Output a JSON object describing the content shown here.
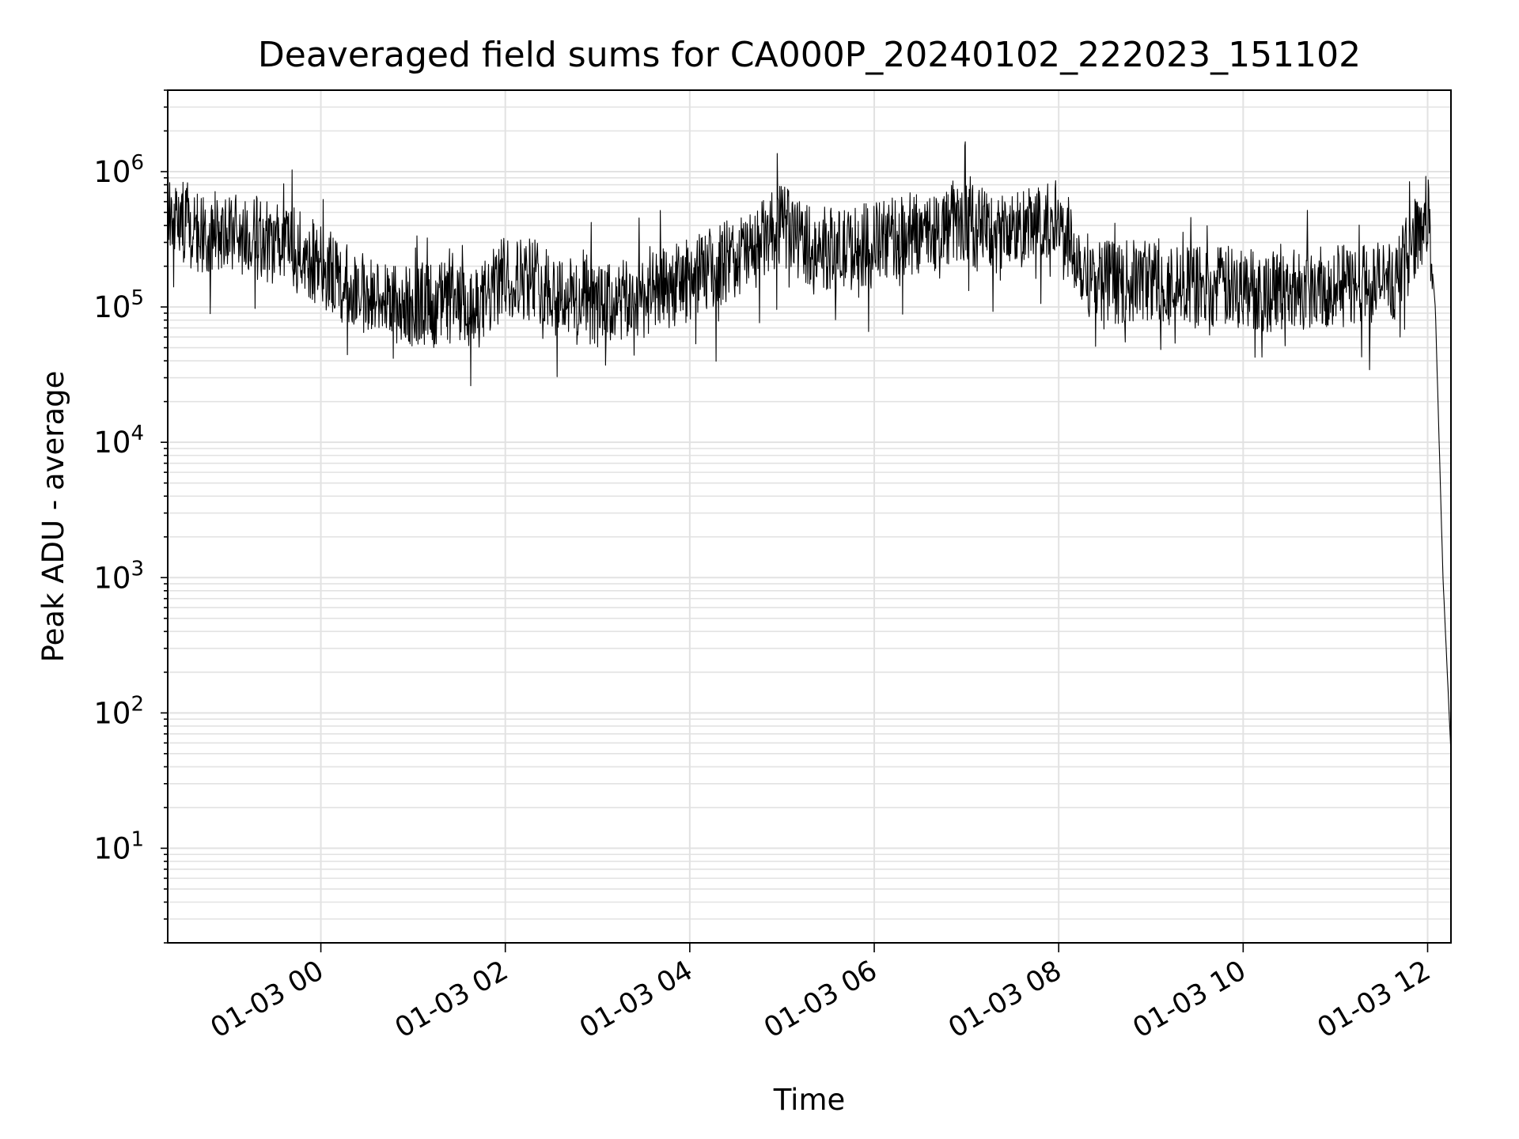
{
  "chart_data": {
    "type": "line",
    "title": "Deaveraged field sums for CA000P_20240102_222023_151102",
    "xlabel": "Time",
    "ylabel": "Peak ADU - average",
    "yscale": "log",
    "ylim": [
      2,
      4000000
    ],
    "xlim": [
      "2024-01-02T22:20:23",
      "2024-01-03T12:15:11"
    ],
    "grid": true,
    "line_color": "#000000",
    "x_ticks": [
      {
        "label": "01-03 00",
        "t": "2024-01-03T00:00:00"
      },
      {
        "label": "01-03 02",
        "t": "2024-01-03T02:00:00"
      },
      {
        "label": "01-03 04",
        "t": "2024-01-03T04:00:00"
      },
      {
        "label": "01-03 06",
        "t": "2024-01-03T06:00:00"
      },
      {
        "label": "01-03 08",
        "t": "2024-01-03T08:00:00"
      },
      {
        "label": "01-03 10",
        "t": "2024-01-03T10:00:00"
      },
      {
        "label": "01-03 12",
        "t": "2024-01-03T12:00:00"
      }
    ],
    "y_ticks": [
      {
        "base": "10",
        "exp": "1",
        "value": 10
      },
      {
        "base": "10",
        "exp": "2",
        "value": 100
      },
      {
        "base": "10",
        "exp": "3",
        "value": 1000
      },
      {
        "base": "10",
        "exp": "4",
        "value": 10000
      },
      {
        "base": "10",
        "exp": "5",
        "value": 100000
      },
      {
        "base": "10",
        "exp": "6",
        "value": 1000000
      }
    ],
    "series": [
      {
        "x": [
          "2024-01-02T22:20:23",
          "2024-01-02T22:40:00",
          "2024-01-02T23:00:00",
          "2024-01-02T23:20:00",
          "2024-01-02T23:40:00",
          "2024-01-03T00:00:00",
          "2024-01-03T00:20:00",
          "2024-01-03T00:40:00",
          "2024-01-03T01:00:00",
          "2024-01-03T01:20:00",
          "2024-01-03T01:40:00",
          "2024-01-03T02:00:00",
          "2024-01-03T02:20:00",
          "2024-01-03T02:40:00",
          "2024-01-03T03:00:00",
          "2024-01-03T03:20:00",
          "2024-01-03T03:40:00",
          "2024-01-03T04:00:00",
          "2024-01-03T04:20:00",
          "2024-01-03T04:40:00",
          "2024-01-03T05:00:00",
          "2024-01-03T05:20:00",
          "2024-01-03T05:40:00",
          "2024-01-03T06:00:00",
          "2024-01-03T06:20:00",
          "2024-01-03T06:40:00",
          "2024-01-03T07:00:00",
          "2024-01-03T07:20:00",
          "2024-01-03T07:40:00",
          "2024-01-03T08:00:00",
          "2024-01-03T08:20:00",
          "2024-01-03T08:40:00",
          "2024-01-03T09:00:00",
          "2024-01-03T09:20:00",
          "2024-01-03T09:40:00",
          "2024-01-03T10:00:00",
          "2024-01-03T10:20:00",
          "2024-01-03T10:40:00",
          "2024-01-03T11:00:00",
          "2024-01-03T11:20:00",
          "2024-01-03T11:40:00",
          "2024-01-03T12:00:00",
          "2024-01-03T12:05:00",
          "2024-01-03T12:10:00",
          "2024-01-03T12:15:11"
        ],
        "y": [
          550000,
          350000,
          350000,
          320000,
          280000,
          200000,
          140000,
          110000,
          100000,
          110000,
          90000,
          170000,
          160000,
          120000,
          100000,
          110000,
          130000,
          160000,
          210000,
          260000,
          400000,
          280000,
          260000,
          300000,
          330000,
          380000,
          420000,
          350000,
          380000,
          430000,
          170000,
          150000,
          160000,
          140000,
          140000,
          140000,
          130000,
          140000,
          140000,
          150000,
          160000,
          520000,
          100000,
          1000,
          50
        ]
      }
    ]
  }
}
